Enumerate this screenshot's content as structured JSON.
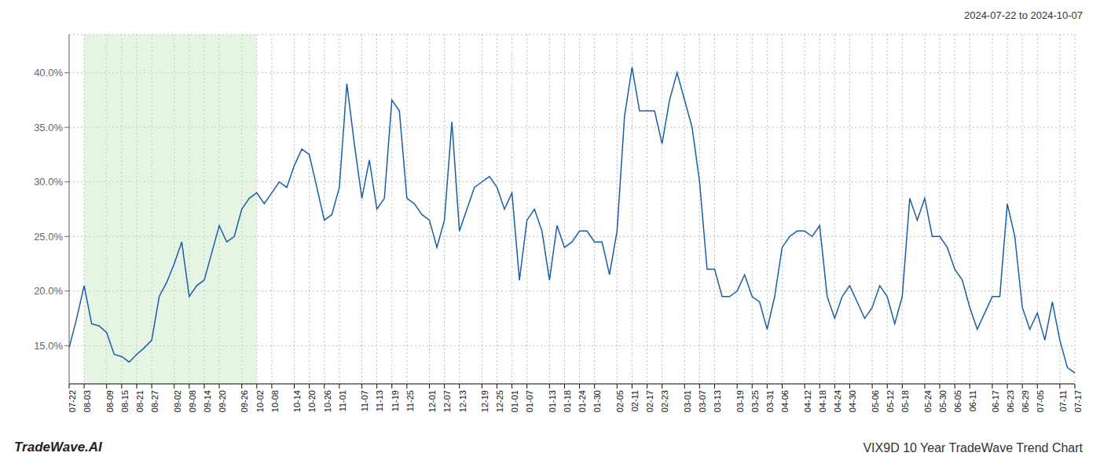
{
  "chart_data": {
    "type": "line",
    "annotations": [
      "2024-07-22 to 2024-10-07",
      "TradeWave.AI",
      "VIX9D 10 Year TradeWave Trend Chart"
    ],
    "color": "#1b5ea8",
    "grid": true,
    "ylim": [
      11.5,
      43.5
    ],
    "yticks": [
      {
        "value": 15.0,
        "label": "15.0%"
      },
      {
        "value": 20.0,
        "label": "20.0%"
      },
      {
        "value": 25.0,
        "label": "25.0%"
      },
      {
        "value": 30.0,
        "label": "30.0%"
      },
      {
        "value": 35.0,
        "label": "35.0%"
      },
      {
        "value": 40.0,
        "label": "40.0%"
      }
    ],
    "shade": {
      "start": "08-03",
      "end": "10-02",
      "color": "#c8e8c0"
    },
    "categories": [
      "07-22",
      null,
      "08-03",
      null,
      null,
      "08-09",
      null,
      "08-15",
      null,
      "08-21",
      null,
      "08-27",
      null,
      null,
      "09-02",
      null,
      "09-08",
      null,
      "09-14",
      null,
      "09-20",
      null,
      null,
      "09-26",
      null,
      "10-02",
      null,
      "10-08",
      null,
      null,
      "10-14",
      null,
      "10-20",
      null,
      "10-26",
      null,
      "11-01",
      null,
      null,
      "11-07",
      null,
      "11-13",
      null,
      "11-19",
      null,
      "11-25",
      null,
      null,
      "12-01",
      null,
      "12-07",
      null,
      "12-13",
      null,
      null,
      "12-19",
      null,
      "12-25",
      null,
      "01-01",
      null,
      "01-07",
      null,
      null,
      "01-13",
      null,
      "01-18",
      null,
      "01-24",
      null,
      "01-30",
      null,
      null,
      "02-05",
      null,
      "02-11",
      null,
      "02-17",
      null,
      "02-23",
      null,
      null,
      "03-01",
      null,
      "03-07",
      null,
      "03-13",
      null,
      null,
      "03-19",
      null,
      "03-25",
      null,
      "03-31",
      null,
      "04-06",
      null,
      null,
      "04-12",
      null,
      "04-18",
      null,
      "04-24",
      null,
      "04-30",
      null,
      null,
      "05-06",
      null,
      "05-12",
      null,
      "05-18",
      null,
      null,
      "05-24",
      null,
      "05-30",
      null,
      "06-05",
      null,
      "06-11",
      null,
      null,
      "06-17",
      null,
      "06-23",
      null,
      "06-29",
      null,
      "07-05",
      null,
      null,
      "07-11",
      null,
      "07-17"
    ],
    "values": [
      14.8,
      17.5,
      20.5,
      17.0,
      16.8,
      16.2,
      14.2,
      14.0,
      13.5,
      14.2,
      14.8,
      15.5,
      19.5,
      20.8,
      22.5,
      24.5,
      19.5,
      20.5,
      21.0,
      23.5,
      26.0,
      24.5,
      25.0,
      27.5,
      28.5,
      29.0,
      28.0,
      29.0,
      30.0,
      29.5,
      31.5,
      33.0,
      32.5,
      29.5,
      26.5,
      27.0,
      29.5,
      39.0,
      33.5,
      28.5,
      32.0,
      27.5,
      28.5,
      37.5,
      36.5,
      28.5,
      28.0,
      27.0,
      26.5,
      24.0,
      26.5,
      35.5,
      25.5,
      27.5,
      29.5,
      30.0,
      30.5,
      29.5,
      27.5,
      29.0,
      21.0,
      26.5,
      27.5,
      25.5,
      21.0,
      26.0,
      24.0,
      24.5,
      25.5,
      25.5,
      24.5,
      24.5,
      21.5,
      25.5,
      36.0,
      40.5,
      36.5,
      36.5,
      36.5,
      33.5,
      37.5,
      40.0,
      37.5,
      35.0,
      30.0,
      22.0,
      22.0,
      19.5,
      19.5,
      20.0,
      21.5,
      19.5,
      19.0,
      16.5,
      19.5,
      24.0,
      25.0,
      25.5,
      25.5,
      25.0,
      26.0,
      19.5,
      17.5,
      19.5,
      20.5,
      19.0,
      17.5,
      18.5,
      20.5,
      19.5,
      17.0,
      19.5,
      28.5,
      26.5,
      28.5,
      25.0,
      25.0,
      24.0,
      22.0,
      21.0,
      18.5,
      16.5,
      18.0,
      19.5,
      19.5,
      28.0,
      25.0,
      18.5,
      16.5,
      18.0,
      15.5,
      19.0,
      15.5,
      13.0,
      12.5
    ]
  }
}
